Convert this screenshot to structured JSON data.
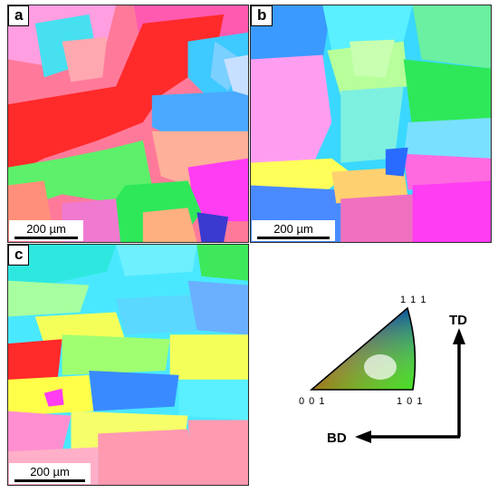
{
  "panels": {
    "a": {
      "label": "a",
      "scale": "200 µm"
    },
    "b": {
      "label": "b",
      "scale": "200 µm"
    },
    "c": {
      "label": "c",
      "scale": "200 µm"
    }
  },
  "legend": {
    "vertex_top": "1 1 1",
    "vertex_bottom_left": "0 0 1",
    "vertex_bottom_right": "1 0 1",
    "axis_vertical": "TD",
    "axis_horizontal": "BD"
  },
  "colors": {
    "red": "#ff2a2a",
    "green": "#2ee85a",
    "blue": "#2a6bff",
    "cyan": "#39e0ff",
    "magenta": "#ff3df2",
    "yellow": "#f3ff4a",
    "orange": "#ff9a6a",
    "pink": "#ff8fd6"
  }
}
